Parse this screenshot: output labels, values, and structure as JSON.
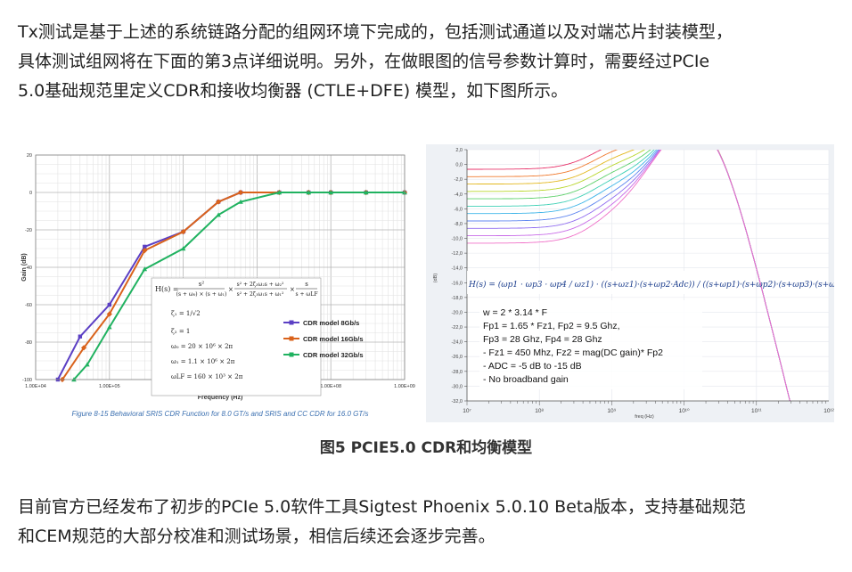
{
  "paragraph1": [
    "Tx测试是基于上述的系统链路分配的组网环境下完成的，包括测试通道以及对端芯片封装模型，",
    "具体测试组网将在下面的第3点详细说明。另外，在做眼图的信号参数计算时，需要经过PCIe",
    "5.0基础规范里定义CDR和接收均衡器 (CTLE+DFE) 模型，如下图所示。"
  ],
  "caption": "图5 PCIE5.0 CDR和均衡模型",
  "paragraph2": [
    "目前官方已经发布了初步的PCIe 5.0软件工具Sigtest Phoenix 5.0.10 Beta版本，支持基础规范",
    "和CEM规范的大部分校准和测试场景，相信后续还会逐步完善。"
  ],
  "left_chart": {
    "caption": "Figure 8-15 Behavioral SRIS CDR Function for 8.0 GT/s and SRIS and CC CDR for 16.0 GT/s",
    "formula": {
      "lhs": "H(s) =",
      "num1": "s²",
      "den1": "(s + ω₀) × (s + ω₁)",
      "num2": "s² + 2ζ₂ω₂s + ω₂²",
      "den2": "s² + 2ζ₁ω₁s + ω₁²",
      "num3": "s",
      "den3": "s + ωLF",
      "zeta1": "ζ₁ = 1/√2",
      "zeta2": "ζ₂ = 1",
      "w0": "ω₀ = 20 × 10⁶ × 2π",
      "w1": "ω₁ = 1.1 × 10⁶ × 2π",
      "wLF": "ωLF = 160 × 10³ × 2π"
    },
    "chart_data": {
      "type": "line",
      "x_scale": "log",
      "xlabel": "Frequency (Hz)",
      "ylabel": "Gain (dB)",
      "xlim": [
        10000,
        1000000000
      ],
      "ylim": [
        -100,
        20
      ],
      "x_ticks": [
        "1.00E+04",
        "1.00E+05",
        "1.00E+06",
        "1.00E+07",
        "1.00E+08",
        "1.00E+09"
      ],
      "y_ticks": [
        "20",
        "0",
        "-20",
        "-40",
        "-60",
        "-80",
        "-100"
      ],
      "legend_position": "right",
      "grid": true,
      "series": [
        {
          "name": "CDR model 8Gb/s",
          "color": "#5b3fc4",
          "x": [
            20000,
            40000,
            100000,
            300000,
            1000000,
            3000000,
            6000000,
            20000000,
            50000000,
            100000000,
            300000000,
            1000000000
          ],
          "y": [
            -100,
            -77,
            -60,
            -29,
            -21,
            -5,
            0,
            0,
            0,
            0,
            0,
            0
          ]
        },
        {
          "name": "CDR model 16Gb/s",
          "color": "#d9621b",
          "x": [
            23000,
            45000,
            100000,
            300000,
            1000000,
            3000000,
            6000000,
            20000000,
            50000000,
            100000000,
            300000000,
            1000000000
          ],
          "y": [
            -100,
            -83,
            -65,
            -31,
            -21,
            -5,
            0,
            0,
            0,
            0,
            0,
            0
          ]
        },
        {
          "name": "CDR model 32Gb/s",
          "color": "#20b260",
          "x": [
            33000,
            50000,
            100000,
            300000,
            1000000,
            3000000,
            6000000,
            20000000,
            50000000,
            100000000,
            300000000,
            1000000000
          ],
          "y": [
            -100,
            -92,
            -72,
            -41,
            -30,
            -12,
            -5,
            0,
            0,
            0,
            0,
            0
          ]
        }
      ]
    }
  },
  "right_chart": {
    "formula": "H(s) = (ωp1 · ωp3 · ωp4 / ωz1) · ((s+ωz1)·(s+ωp2·Adc)) / ((s+ωp1)·(s+ωp2)·(s+ωp3)·(s+ωp4))",
    "params": [
      "w = 2  * 3.14 * F",
      "Fp1 = 1.65 * Fz1, Fp2 = 9.5 Ghz,",
      "Fp3 = 28 Ghz, Fp4 = 28 Ghz",
      "- Fz1 = 450 Mhz, Fz2 = mag(DC gain)* Fp2",
      "- ADC = -5 dB to -15 dB",
      "- No broadband gain"
    ],
    "chart_data": {
      "type": "line",
      "x_scale": "log",
      "xlabel": "freq (Hz)",
      "ylabel": "(dB)",
      "xlim": [
        10000000,
        1000000000000
      ],
      "ylim": [
        -32,
        2
      ],
      "x_ticks": [
        "10⁷",
        "10⁸",
        "10⁹",
        "10¹⁰",
        "10¹¹",
        "10¹²"
      ],
      "y_ticks": [
        "2,0",
        "0,0",
        "-2,0",
        "-4,0",
        "-6,0",
        "-8,0",
        "-10,0",
        "-12,0",
        "-14,0",
        "-16,0",
        "-18,0",
        "-20,0",
        "-22,0",
        "-24,0",
        "-26,0",
        "-28,0",
        "-30,0",
        "-32,0"
      ],
      "grid": true,
      "series_note": "11 curves for DC gain -5 dB to -15 dB in 1 dB steps",
      "dc_gains": [
        -5,
        -6,
        -7,
        -8,
        -9,
        -10,
        -11,
        -12,
        -13,
        -14,
        -15
      ],
      "colors": [
        "#e8336b",
        "#f07a2e",
        "#e3b81f",
        "#b9d62c",
        "#5fd16c",
        "#3ed0b5",
        "#3fb5e8",
        "#5f86f0",
        "#8f6bf0",
        "#c86be8",
        "#f070c8"
      ]
    }
  }
}
